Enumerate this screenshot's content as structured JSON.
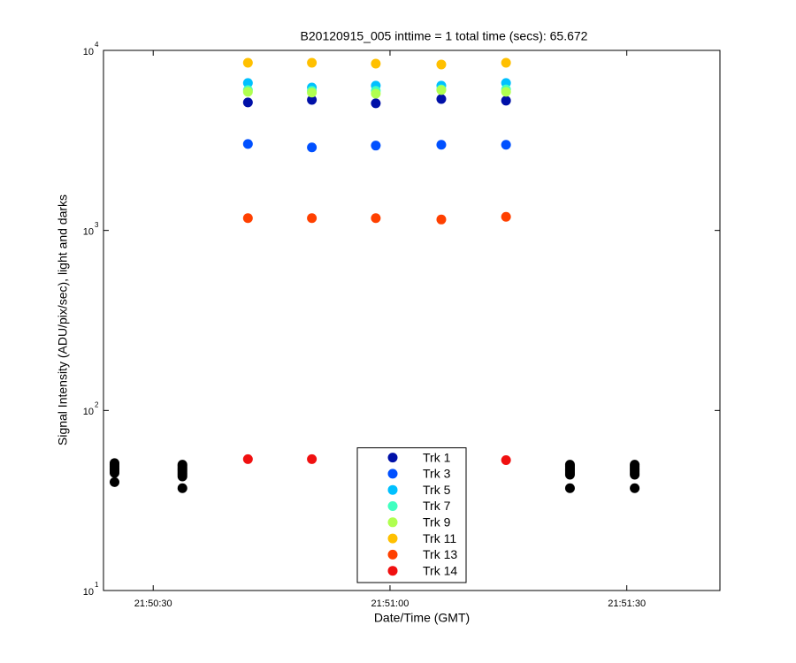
{
  "chart_data": {
    "type": "scatter",
    "title": "B20120915_005 inttime = 1 total time (secs): 65.672",
    "x_label": "Date/Time (GMT)",
    "y_label": "Signal Intensity (ADU/pix/sec), light and darks",
    "log_y": true,
    "xlim": [
      23.7,
      101.8
    ],
    "xticks": [
      {
        "value": 30,
        "label": "21:50:30"
      },
      {
        "value": 60,
        "label": "21:51:00"
      },
      {
        "value": 90,
        "label": "21:51:30"
      }
    ],
    "ylim": [
      10,
      10000
    ],
    "yticks": [
      {
        "value": 10,
        "label": "10",
        "exponent": "1"
      },
      {
        "value": 100,
        "label": "10",
        "exponent": "2"
      },
      {
        "value": 1000,
        "label": "10",
        "exponent": "3"
      },
      {
        "value": 10000,
        "label": "10",
        "exponent": "4"
      }
    ],
    "legend": "bottom-center",
    "x": [
      42.0,
      50.1,
      58.2,
      66.5,
      74.7
    ],
    "series": [
      {
        "name": "Trk 1",
        "color": "#0010a8",
        "values": [
          5140,
          5310,
          5080,
          5370,
          5260
        ]
      },
      {
        "name": "Trk 3",
        "color": "#0050ff",
        "values": [
          3020,
          2890,
          2960,
          2990,
          2990
        ]
      },
      {
        "name": "Trk 5",
        "color": "#00c0ff",
        "values": [
          6590,
          6220,
          6370,
          6370,
          6590
        ]
      },
      {
        "name": "Trk 7",
        "color": "#40ffc0",
        "values": [
          6020,
          5960,
          5960,
          6070,
          6070
        ]
      },
      {
        "name": "Trk 9",
        "color": "#b0ff50",
        "values": [
          5890,
          5830,
          5750,
          6020,
          5890
        ]
      },
      {
        "name": "Trk 11",
        "color": "#ffc000",
        "values": [
          8540,
          8540,
          8440,
          8350,
          8540
        ]
      },
      {
        "name": "Trk 13",
        "color": "#ff4000",
        "values": [
          1170,
          1170,
          1170,
          1150,
          1190
        ]
      },
      {
        "name": "Trk 14",
        "color": "#f01010",
        "values": [
          53.7,
          53.7,
          53,
          53,
          53
        ]
      }
    ],
    "darks": {
      "color": "#000000",
      "x": [
        25.1,
        25.1,
        25.1,
        25.1,
        25.1,
        25.1,
        25.1,
        25.1,
        33.7,
        33.7,
        33.7,
        33.7,
        33.7,
        33.7,
        33.7,
        33.7,
        33.7,
        82.8,
        82.8,
        82.8,
        82.8,
        82.8,
        82.8,
        82.8,
        82.8,
        91.0,
        91.0,
        91.0,
        91.0,
        91.0,
        91.0,
        91.0,
        91.0
      ],
      "values": [
        51,
        50,
        49,
        48,
        47,
        46,
        45,
        40,
        50,
        49,
        48,
        47,
        46,
        45,
        44,
        43,
        37,
        50,
        49,
        48,
        47,
        46,
        45,
        44,
        37,
        50,
        49,
        48,
        47,
        46,
        45,
        44,
        37
      ]
    }
  }
}
